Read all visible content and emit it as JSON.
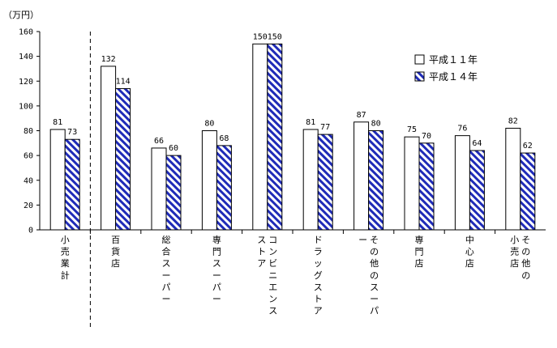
{
  "chart_data": {
    "type": "bar",
    "unit_label": "（万円）",
    "categories": [
      "小売業計",
      "百貨店",
      "総合スーパー",
      "専門スーパー",
      "コンビニエンスストア",
      "ドラッグストア",
      "その他のスーパー",
      "専門店",
      "中心店",
      "その他の小売店"
    ],
    "series": [
      {
        "name": "平成１１年",
        "values": [
          81,
          132,
          66,
          80,
          150,
          81,
          87,
          75,
          76,
          82
        ],
        "color": "#ffffff",
        "pattern": "none"
      },
      {
        "name": "平成１４年",
        "values": [
          73,
          114,
          60,
          68,
          150,
          77,
          80,
          70,
          64,
          62
        ],
        "color": "#1f2bb8",
        "pattern": "diagonal-stripes"
      }
    ],
    "ylim": [
      0,
      160
    ],
    "yticks": [
      0,
      20,
      40,
      60,
      80,
      100,
      120,
      140,
      160
    ],
    "legend_position": "top-right",
    "grid": false
  }
}
